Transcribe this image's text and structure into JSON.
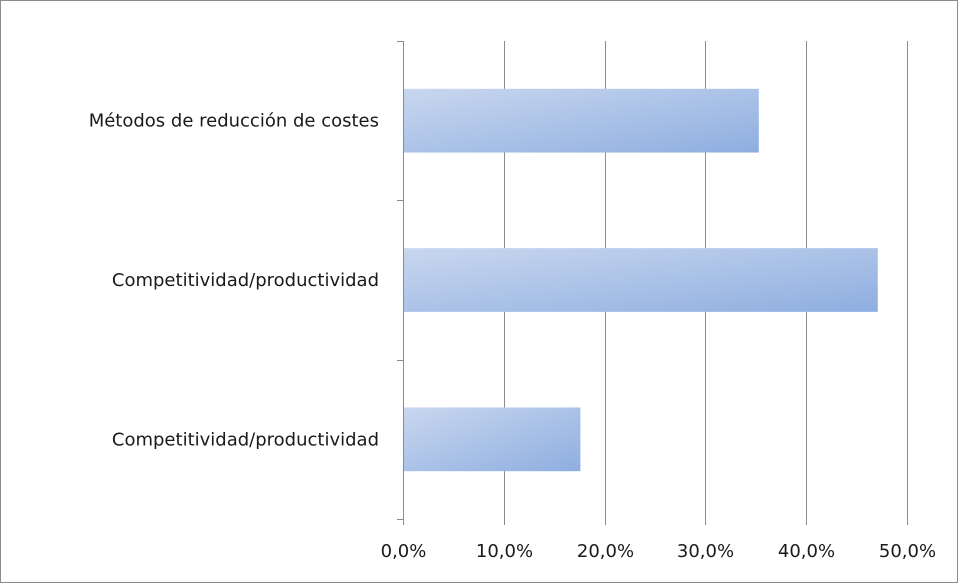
{
  "chart_data": {
    "type": "bar",
    "orientation": "horizontal",
    "title": "",
    "xlabel": "",
    "ylabel": "",
    "categories": [
      "Métodos de reducción de costes",
      "Competitividad/productividad",
      "Competitividad/productividad"
    ],
    "values": [
      35.3,
      47.1,
      17.6
    ],
    "xlim": [
      0,
      50
    ],
    "x_ticks": [
      0,
      10,
      20,
      30,
      40,
      50
    ],
    "x_tick_labels": [
      "0,0%",
      "10,0%",
      "20,0%",
      "30,0%",
      "40,0%",
      "50,0%"
    ],
    "grid": "vertical",
    "legend": "none",
    "bar_color_light": "#c9d7ef",
    "bar_color_dark": "#8eaee0",
    "grid_color": "#8c8c8c"
  }
}
